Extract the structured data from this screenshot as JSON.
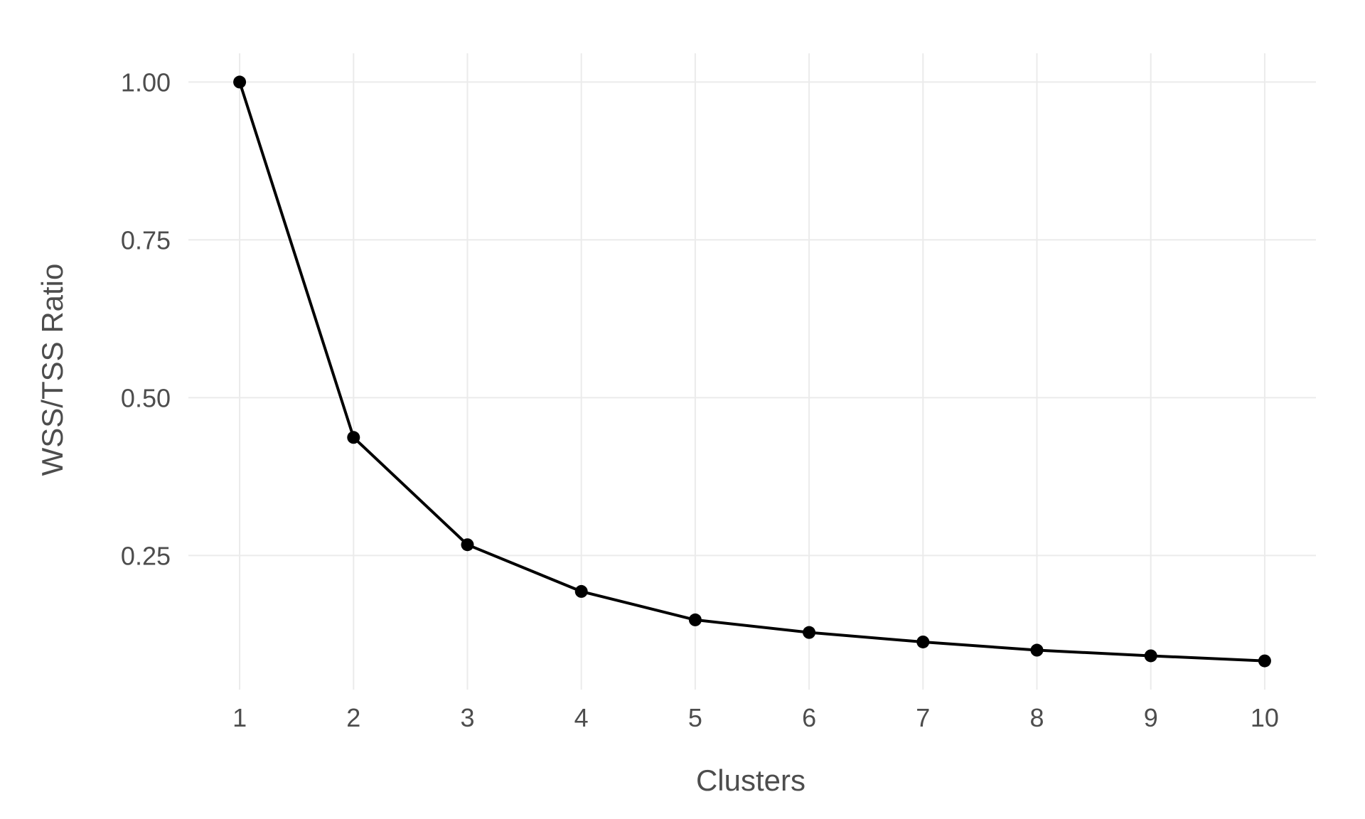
{
  "chart_data": {
    "type": "line",
    "title": "",
    "xlabel": "Clusters",
    "ylabel": "WSS/TSS Ratio",
    "x": [
      1,
      2,
      3,
      4,
      5,
      6,
      7,
      8,
      9,
      10
    ],
    "series": [
      {
        "values": [
          1.0,
          0.437,
          0.267,
          0.193,
          0.148,
          0.128,
          0.113,
          0.1,
          0.091,
          0.083
        ]
      }
    ],
    "x_ticks": [
      "1",
      "2",
      "3",
      "4",
      "5",
      "6",
      "7",
      "8",
      "9",
      "10"
    ],
    "y_ticks": [
      "0.25",
      "0.50",
      "0.75",
      "1.00"
    ],
    "xlim": [
      0.55,
      10.45
    ],
    "ylim": [
      0.0375,
      1.0455
    ],
    "grid": true,
    "legend": "none",
    "colors": {
      "line": "#000000",
      "grid": "#ebebeb",
      "text": "#4d4d4d"
    }
  }
}
